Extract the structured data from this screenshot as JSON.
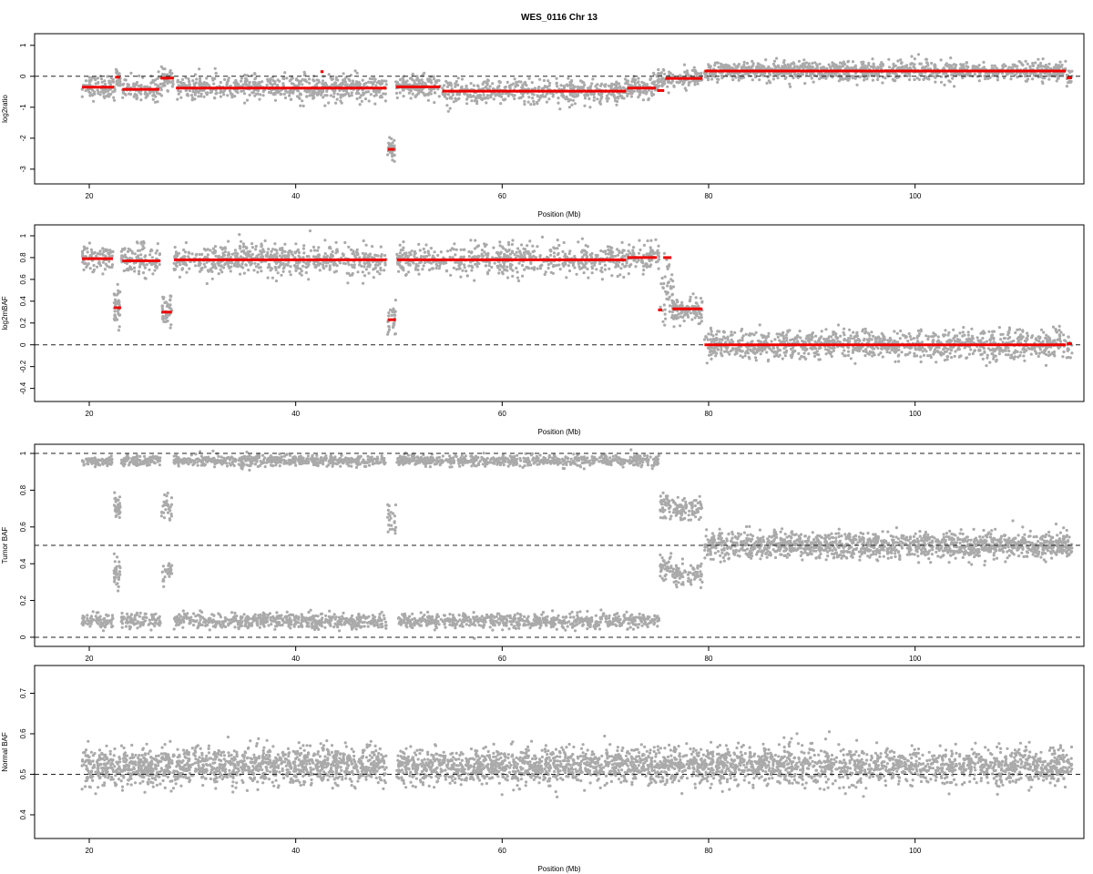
{
  "figure": {
    "title": "WES_0116 Chr 13",
    "point_color": "#aaaaaa",
    "segment_color": "#ee0000",
    "reference_line_color": "#222222"
  },
  "chart_data": [
    {
      "type": "scatter",
      "name": "log2ratio-panel",
      "xlabel": "Position (Mb)",
      "ylabel": "log2ratio",
      "xlim": [
        15.5,
        116
      ],
      "ylim": [
        -3.3,
        1.2
      ],
      "xticks": [
        20,
        40,
        60,
        80,
        100
      ],
      "yticks": [
        1,
        0,
        -1,
        -2,
        -3
      ],
      "reference_lines": [
        0
      ],
      "point_clusters": [
        {
          "x": [
            19.3,
            22.5
          ],
          "center": -0.35,
          "spread": 0.38,
          "n": 95
        },
        {
          "x": [
            22.6,
            23.0
          ],
          "center": -0.1,
          "spread": 0.3,
          "n": 25
        },
        {
          "x": [
            23.2,
            27.0
          ],
          "center": -0.4,
          "spread": 0.38,
          "n": 110
        },
        {
          "x": [
            27.0,
            28.2
          ],
          "center": -0.1,
          "spread": 0.3,
          "n": 45
        },
        {
          "x": [
            28.5,
            48.8
          ],
          "center": -0.38,
          "spread": 0.4,
          "n": 620
        },
        {
          "x": [
            48.9,
            49.6
          ],
          "center": -2.35,
          "spread": 0.4,
          "n": 40
        },
        {
          "x": [
            49.7,
            54.0
          ],
          "center": -0.35,
          "spread": 0.38,
          "n": 140
        },
        {
          "x": [
            54.2,
            72.0
          ],
          "center": -0.5,
          "spread": 0.38,
          "n": 480
        },
        {
          "x": [
            72.0,
            75.0
          ],
          "center": -0.35,
          "spread": 0.35,
          "n": 90
        },
        {
          "x": [
            75.0,
            79.4
          ],
          "center": -0.1,
          "spread": 0.35,
          "n": 120
        },
        {
          "x": [
            79.6,
            114.6
          ],
          "center": 0.17,
          "spread": 0.3,
          "n": 1150
        },
        {
          "x": [
            114.7,
            115.2
          ],
          "center": -0.05,
          "spread": 0.25,
          "n": 15
        }
      ],
      "segments": [
        {
          "x": [
            19.3,
            22.4
          ],
          "y": -0.35
        },
        {
          "x": [
            22.5,
            23.0
          ],
          "y": -0.03
        },
        {
          "x": [
            23.2,
            26.8
          ],
          "y": -0.42
        },
        {
          "x": [
            26.9,
            28.2
          ],
          "y": -0.06
        },
        {
          "x": [
            28.4,
            48.8
          ],
          "y": -0.38
        },
        {
          "x": [
            42.4,
            42.7
          ],
          "y": 0.15
        },
        {
          "x": [
            48.9,
            49.6
          ],
          "y": -2.36
        },
        {
          "x": [
            49.7,
            54.0
          ],
          "y": -0.34
        },
        {
          "x": [
            54.2,
            72.0
          ],
          "y": -0.48
        },
        {
          "x": [
            72.1,
            74.9
          ],
          "y": -0.38
        },
        {
          "x": [
            75.0,
            75.7
          ],
          "y": -0.46
        },
        {
          "x": [
            75.8,
            79.4
          ],
          "y": -0.07
        },
        {
          "x": [
            79.6,
            114.6
          ],
          "y": 0.17
        },
        {
          "x": [
            114.7,
            115.2
          ],
          "y": -0.05
        }
      ]
    },
    {
      "type": "scatter",
      "name": "log2mBAF-panel",
      "xlabel": "Position (Mb)",
      "ylabel": "log2mBAF",
      "xlim": [
        15.5,
        116
      ],
      "ylim": [
        -0.47,
        1.05
      ],
      "xticks": [
        20,
        40,
        60,
        80,
        100
      ],
      "yticks": [
        1.0,
        0.8,
        0.6,
        0.4,
        0.2,
        0.0,
        -0.2,
        -0.4
      ],
      "reference_lines": [
        0
      ],
      "point_clusters": [
        {
          "x": [
            19.3,
            22.3
          ],
          "center": 0.8,
          "spread": 0.13,
          "n": 90
        },
        {
          "x": [
            22.4,
            23.0
          ],
          "center": 0.33,
          "spread": 0.18,
          "n": 40
        },
        {
          "x": [
            23.1,
            26.9
          ],
          "center": 0.78,
          "spread": 0.14,
          "n": 120
        },
        {
          "x": [
            27.0,
            28.0
          ],
          "center": 0.3,
          "spread": 0.16,
          "n": 40
        },
        {
          "x": [
            28.2,
            48.8
          ],
          "center": 0.78,
          "spread": 0.14,
          "n": 620
        },
        {
          "x": [
            48.9,
            49.7
          ],
          "center": 0.23,
          "spread": 0.18,
          "n": 30
        },
        {
          "x": [
            49.8,
            72.0
          ],
          "center": 0.78,
          "spread": 0.14,
          "n": 620
        },
        {
          "x": [
            72.0,
            75.2
          ],
          "center": 0.8,
          "spread": 0.12,
          "n": 90
        },
        {
          "x": [
            75.3,
            76.6
          ],
          "center": 0.5,
          "spread": 0.3,
          "n": 45
        },
        {
          "x": [
            76.5,
            79.4
          ],
          "center": 0.32,
          "spread": 0.12,
          "n": 120
        },
        {
          "x": [
            79.6,
            115.2
          ],
          "center": 0.0,
          "spread": 0.13,
          "n": 1150
        }
      ],
      "segments": [
        {
          "x": [
            19.3,
            22.3
          ],
          "y": 0.79
        },
        {
          "x": [
            22.4,
            23.1
          ],
          "y": 0.34
        },
        {
          "x": [
            23.2,
            26.9
          ],
          "y": 0.77
        },
        {
          "x": [
            27.0,
            28.0
          ],
          "y": 0.3
        },
        {
          "x": [
            28.2,
            48.8
          ],
          "y": 0.78
        },
        {
          "x": [
            48.9,
            49.7
          ],
          "y": 0.23
        },
        {
          "x": [
            49.8,
            72.0
          ],
          "y": 0.78
        },
        {
          "x": [
            72.1,
            75.0
          ],
          "y": 0.8
        },
        {
          "x": [
            75.1,
            75.5
          ],
          "y": 0.32
        },
        {
          "x": [
            75.6,
            76.4
          ],
          "y": 0.8
        },
        {
          "x": [
            76.5,
            79.4
          ],
          "y": 0.33
        },
        {
          "x": [
            79.6,
            114.6
          ],
          "y": 0.0
        },
        {
          "x": [
            114.7,
            115.2
          ],
          "y": 0.01
        }
      ]
    },
    {
      "type": "scatter",
      "name": "tumor-baf-panel",
      "xlabel": "",
      "ylabel": "Tumor BAF",
      "xlim": [
        15.5,
        116
      ],
      "ylim": [
        -0.02,
        1.02
      ],
      "xticks": [
        20,
        40,
        60,
        80,
        100
      ],
      "yticks": [
        1.0,
        0.8,
        0.6,
        0.4,
        0.2,
        0.0
      ],
      "reference_lines": [
        1.0,
        0.5,
        0.0
      ],
      "point_clusters": [
        {
          "x": [
            19.3,
            22.3
          ],
          "center": 0.96,
          "spread": 0.03,
          "n": 80
        },
        {
          "x": [
            19.3,
            22.3
          ],
          "center": 0.09,
          "spread": 0.04,
          "n": 80
        },
        {
          "x": [
            22.4,
            23.0
          ],
          "center": 0.7,
          "spread": 0.07,
          "n": 35
        },
        {
          "x": [
            22.4,
            23.0
          ],
          "center": 0.35,
          "spread": 0.07,
          "n": 35
        },
        {
          "x": [
            23.1,
            26.9
          ],
          "center": 0.96,
          "spread": 0.03,
          "n": 100
        },
        {
          "x": [
            23.1,
            26.9
          ],
          "center": 0.09,
          "spread": 0.04,
          "n": 100
        },
        {
          "x": [
            27.0,
            28.0
          ],
          "center": 0.7,
          "spread": 0.06,
          "n": 30
        },
        {
          "x": [
            27.0,
            28.0
          ],
          "center": 0.36,
          "spread": 0.06,
          "n": 30
        },
        {
          "x": [
            28.2,
            48.8
          ],
          "center": 0.96,
          "spread": 0.03,
          "n": 560
        },
        {
          "x": [
            28.2,
            48.8
          ],
          "center": 0.09,
          "spread": 0.04,
          "n": 560
        },
        {
          "x": [
            48.9,
            49.7
          ],
          "center": 0.65,
          "spread": 0.08,
          "n": 25
        },
        {
          "x": [
            49.8,
            75.2
          ],
          "center": 0.96,
          "spread": 0.03,
          "n": 620
        },
        {
          "x": [
            49.8,
            75.2
          ],
          "center": 0.09,
          "spread": 0.04,
          "n": 620
        },
        {
          "x": [
            75.3,
            76.4
          ],
          "center": 0.72,
          "spread": 0.07,
          "n": 40
        },
        {
          "x": [
            75.3,
            76.4
          ],
          "center": 0.38,
          "spread": 0.07,
          "n": 40
        },
        {
          "x": [
            76.5,
            79.4
          ],
          "center": 0.7,
          "spread": 0.06,
          "n": 90
        },
        {
          "x": [
            76.5,
            79.4
          ],
          "center": 0.34,
          "spread": 0.06,
          "n": 90
        },
        {
          "x": [
            79.6,
            115.2
          ],
          "center": 0.5,
          "spread": 0.07,
          "n": 1400
        }
      ],
      "segments": []
    },
    {
      "type": "scatter",
      "name": "normal-baf-panel",
      "xlabel": "Position (Mb)",
      "ylabel": "Normal BAF",
      "xlim": [
        15.5,
        116
      ],
      "ylim": [
        0.355,
        0.755
      ],
      "xticks": [
        20,
        40,
        60,
        80,
        100
      ],
      "yticks": [
        0.7,
        0.6,
        0.5,
        0.4
      ],
      "reference_lines": [
        0.5
      ],
      "point_clusters": [
        {
          "x": [
            19.3,
            48.8
          ],
          "center": 0.52,
          "spread": 0.045,
          "n": 1400
        },
        {
          "x": [
            49.8,
            115.2
          ],
          "center": 0.52,
          "spread": 0.045,
          "n": 2800
        }
      ],
      "segments": []
    }
  ]
}
